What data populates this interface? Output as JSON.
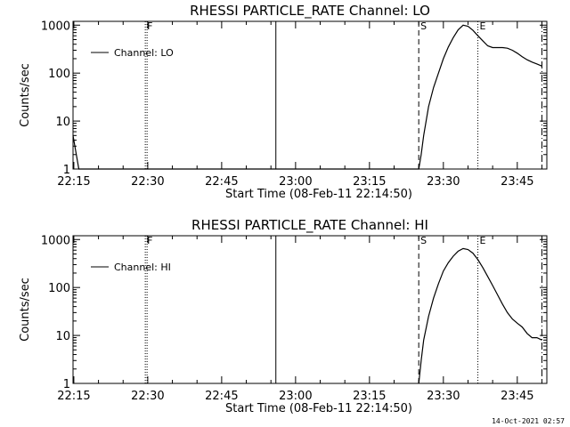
{
  "chart_data": [
    {
      "type": "line",
      "title": "RHESSI PARTICLE_RATE Channel: LO",
      "xlabel": "Start Time (08-Feb-11 22:14:50)",
      "ylabel": "Counts/sec",
      "x_ticks": [
        "22:15",
        "22:30",
        "22:45",
        "23:00",
        "23:15",
        "23:30",
        "23:45"
      ],
      "y_ticks": [
        "1",
        "10",
        "100",
        "1000"
      ],
      "y_scale": "log",
      "ylim": [
        1,
        1200
      ],
      "xlim": [
        "22:14:50",
        "23:51:00"
      ],
      "legend": "top-left",
      "series": [
        {
          "name": "Channel: LO",
          "x": [
            "22:14:50",
            "22:15:30",
            "22:16:00",
            "23:25:00",
            "23:25:30",
            "23:26:00",
            "23:27:00",
            "23:28:00",
            "23:29:00",
            "23:30:00",
            "23:31:00",
            "23:32:00",
            "23:33:00",
            "23:34:00",
            "23:35:00",
            "23:36:00",
            "23:37:00",
            "23:38:00",
            "23:39:00",
            "23:40:00",
            "23:41:00",
            "23:42:00",
            "23:43:00",
            "23:44:00",
            "23:45:00",
            "23:46:00",
            "23:47:00",
            "23:48:00",
            "23:49:00",
            "23:50:00"
          ],
          "values": [
            5,
            2,
            1,
            1,
            2,
            5,
            20,
            50,
            100,
            200,
            350,
            550,
            800,
            1000,
            950,
            780,
            600,
            470,
            370,
            340,
            340,
            340,
            330,
            300,
            260,
            220,
            190,
            170,
            155,
            140
          ]
        }
      ],
      "markers": [
        {
          "label": "F",
          "time": "22:29:30",
          "style": "dotted"
        },
        {
          "label": "",
          "time": "22:56:00",
          "style": "solid"
        },
        {
          "label": "S",
          "time": "23:25:00",
          "style": "dashed"
        },
        {
          "label": "E",
          "time": "23:37:00",
          "style": "dotted"
        },
        {
          "label": "",
          "time": "23:50:00",
          "style": "dashdot"
        }
      ]
    },
    {
      "type": "line",
      "title": "RHESSI PARTICLE_RATE Channel: HI",
      "xlabel": "Start Time (08-Feb-11 22:14:50)",
      "ylabel": "Counts/sec",
      "x_ticks": [
        "22:15",
        "22:30",
        "22:45",
        "23:00",
        "23:15",
        "23:30",
        "23:45"
      ],
      "y_ticks": [
        "1",
        "10",
        "100",
        "1000"
      ],
      "y_scale": "log",
      "ylim": [
        1,
        1200
      ],
      "xlim": [
        "22:14:50",
        "23:51:00"
      ],
      "legend": "top-left",
      "series": [
        {
          "name": "Channel: HI",
          "x": [
            "23:25:00",
            "23:25:30",
            "23:26:00",
            "23:27:00",
            "23:28:00",
            "23:29:00",
            "23:30:00",
            "23:31:00",
            "23:32:00",
            "23:33:00",
            "23:34:00",
            "23:35:00",
            "23:36:00",
            "23:37:00",
            "23:38:00",
            "23:39:00",
            "23:40:00",
            "23:41:00",
            "23:42:00",
            "23:43:00",
            "23:44:00",
            "23:45:00",
            "23:46:00",
            "23:47:00",
            "23:48:00",
            "23:49:00",
            "23:50:00"
          ],
          "values": [
            1,
            3,
            8,
            25,
            60,
            120,
            220,
            330,
            450,
            570,
            650,
            620,
            520,
            380,
            260,
            170,
            110,
            70,
            45,
            30,
            22,
            18,
            15,
            11,
            9,
            9,
            8
          ]
        }
      ],
      "markers": [
        {
          "label": "F",
          "time": "22:29:30",
          "style": "dotted"
        },
        {
          "label": "",
          "time": "22:56:00",
          "style": "solid"
        },
        {
          "label": "S",
          "time": "23:25:00",
          "style": "dashed"
        },
        {
          "label": "E",
          "time": "23:37:00",
          "style": "dotted"
        },
        {
          "label": "",
          "time": "23:50:00",
          "style": "dashdot"
        }
      ]
    }
  ],
  "footer": {
    "timestamp": "14-Oct-2021 02:57"
  }
}
